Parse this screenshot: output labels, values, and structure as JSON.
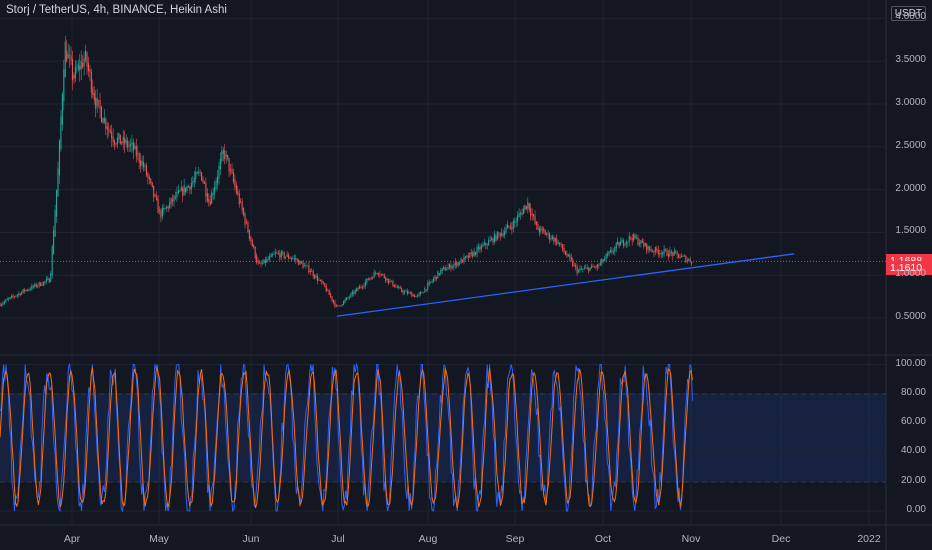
{
  "header": {
    "title": "Storj / TetherUS, 4h, BINANCE, Heikin Ashi",
    "currency": "USDT"
  },
  "price_tags": {
    "last": "1.1688",
    "close": "1.1610"
  },
  "colors": {
    "background": "#131722",
    "up": "#26a69a",
    "down": "#ef5350",
    "trendline": "#2962ff",
    "stoch_k": "#2962ff",
    "stoch_d": "#ff6d00",
    "band_fill": "#2962ff",
    "price_line": "#f23645",
    "grid": "#1f2332",
    "axis_text": "#b2b5be"
  },
  "chart_data": [
    {
      "type": "candlestick",
      "title": "Storj / TetherUS, 4h, BINANCE, Heikin Ashi",
      "ylim": [
        0.2,
        4.0
      ],
      "yticks": [
        "0.5000",
        "1.0000",
        "1.5000",
        "2.0000",
        "2.5000",
        "3.0000",
        "3.5000",
        "4.0000"
      ],
      "xticks": [
        "Apr",
        "May",
        "Jun",
        "Jul",
        "Aug",
        "Sep",
        "Oct",
        "Nov",
        "Dec",
        "2022"
      ],
      "last_price": 1.1688,
      "close_price": 1.161,
      "approx_close_path": [
        [
          "Mar 01",
          0.65
        ],
        [
          "Mar 10",
          0.82
        ],
        [
          "Mar 19",
          0.95
        ],
        [
          "Mar 20",
          1.45
        ],
        [
          "Mar 22",
          2.35
        ],
        [
          "Mar 24",
          3.7
        ],
        [
          "Mar 27",
          3.3
        ],
        [
          "Mar 31",
          3.55
        ],
        [
          "Apr 04",
          3.0
        ],
        [
          "Apr 10",
          2.6
        ],
        [
          "Apr 16",
          2.5
        ],
        [
          "Apr 20",
          2.3
        ],
        [
          "Apr 26",
          1.7
        ],
        [
          "May 01",
          1.9
        ],
        [
          "May 06",
          2.05
        ],
        [
          "May 10",
          2.2
        ],
        [
          "May 13",
          1.85
        ],
        [
          "May 18",
          2.45
        ],
        [
          "May 23",
          1.9
        ],
        [
          "May 30",
          1.1
        ],
        [
          "Jun 05",
          1.25
        ],
        [
          "Jun 11",
          1.2
        ],
        [
          "Jun 17",
          1.05
        ],
        [
          "Jun 22",
          0.85
        ],
        [
          "Jun 26",
          0.62
        ],
        [
          "Jul 02",
          0.8
        ],
        [
          "Jul 10",
          1.05
        ],
        [
          "Jul 18",
          0.82
        ],
        [
          "Jul 24",
          0.75
        ],
        [
          "Aug 01",
          1.05
        ],
        [
          "Aug 10",
          1.2
        ],
        [
          "Aug 18",
          1.4
        ],
        [
          "Aug 26",
          1.6
        ],
        [
          "Aug 31",
          1.85
        ],
        [
          "Sep 03",
          1.55
        ],
        [
          "Sep 10",
          1.4
        ],
        [
          "Sep 17",
          1.05
        ],
        [
          "Sep 24",
          1.1
        ],
        [
          "Oct 01",
          1.35
        ],
        [
          "Oct 06",
          1.45
        ],
        [
          "Oct 12",
          1.3
        ],
        [
          "Oct 20",
          1.25
        ],
        [
          "Oct 27",
          1.16
        ]
      ],
      "trendline": {
        "from": [
          "Jun 26",
          0.52
        ],
        "to": [
          "Dec 01",
          1.25
        ]
      }
    },
    {
      "type": "line",
      "title": "Stochastic",
      "ylim": [
        0,
        100
      ],
      "yticks": [
        "0.00",
        "20.00",
        "40.00",
        "60.00",
        "80.00",
        "100.00"
      ],
      "bands": {
        "upper": 80,
        "lower": 20
      },
      "series": [
        {
          "name": "",
          "color": "#2962ff",
          "values_range": [
            0,
            100
          ]
        },
        {
          "name": "",
          "color": "#ff6d00",
          "values_range": [
            0,
            100
          ]
        }
      ]
    }
  ]
}
